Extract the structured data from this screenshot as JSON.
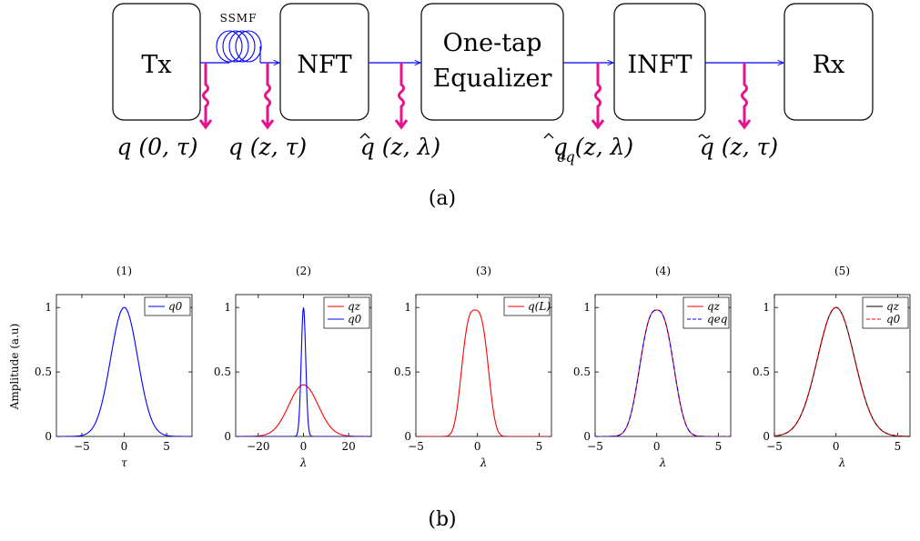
{
  "diagram": {
    "blocks": [
      {
        "id": "tx",
        "label": "Tx"
      },
      {
        "id": "nft",
        "label": "NFT"
      },
      {
        "id": "equalizer",
        "label_line1": "One-tap",
        "label_line2": "Equalizer"
      },
      {
        "id": "infft",
        "label": "INFT"
      },
      {
        "id": "rx",
        "label": "Rx"
      }
    ],
    "fiber_label": "SSMF",
    "signals": [
      {
        "id": "q0",
        "text": "q (0, τ)"
      },
      {
        "id": "qz",
        "text": "q (z, τ)"
      },
      {
        "id": "qhat",
        "text": "q (z, λ)"
      },
      {
        "id": "qeq",
        "text": "q (z, λ)",
        "subscript": "eq"
      },
      {
        "id": "qtilde",
        "text": "q (z, τ)"
      }
    ],
    "caption_a": "(a)",
    "caption_b": "(b)",
    "colors": {
      "arrow": "#0000ff",
      "tap": "#e6138c"
    }
  },
  "chart_data": [
    {
      "type": "line",
      "title": "(1)",
      "xlabel": "τ",
      "ylabel": "Amplitude (a.u)",
      "xlim": [
        -8,
        8
      ],
      "ylim": [
        0,
        1.1
      ],
      "xticks": [
        -5,
        0,
        5
      ],
      "yticks": [
        0,
        0.5,
        1
      ],
      "series": [
        {
          "name": "q0",
          "color": "#0000ff",
          "dash": "solid",
          "shape": "gaussian",
          "amplitude": 1,
          "width": 1.6
        }
      ]
    },
    {
      "type": "line",
      "title": "(2)",
      "xlabel": "λ",
      "ylabel": "",
      "xlim": [
        -30,
        30
      ],
      "ylim": [
        0,
        1.1
      ],
      "xticks": [
        -20,
        0,
        20
      ],
      "yticks": [
        0,
        0.5,
        1
      ],
      "series": [
        {
          "name": "qz",
          "color": "#ff0000",
          "dash": "solid",
          "shape": "gaussian",
          "amplitude": 0.4,
          "width": 6.5
        },
        {
          "name": "q0",
          "color": "#0000ff",
          "dash": "solid",
          "shape": "gaussian",
          "amplitude": 1,
          "width": 1.0
        }
      ]
    },
    {
      "type": "line",
      "title": "(3)",
      "xlabel": "λ",
      "ylabel": "",
      "xlim": [
        -5,
        6
      ],
      "ylim": [
        0,
        1.1
      ],
      "xticks": [
        -5,
        0,
        5
      ],
      "yticks": [
        0,
        0.5,
        1
      ],
      "series": [
        {
          "name": "q(L)",
          "color": "#ff0000",
          "dash": "solid",
          "shape": "flattop",
          "amplitude": 0.98,
          "center": -0.2,
          "width": 0.9,
          "power": 3
        }
      ]
    },
    {
      "type": "line",
      "title": "(4)",
      "xlabel": "λ",
      "ylabel": "",
      "xlim": [
        -5,
        6
      ],
      "ylim": [
        0,
        1.1
      ],
      "xticks": [
        -5,
        0,
        5
      ],
      "yticks": [
        0,
        0.5,
        1
      ],
      "series": [
        {
          "name": "qz",
          "color": "#ff0000",
          "dash": "solid",
          "shape": "flattop",
          "amplitude": 0.98,
          "center": 0,
          "width": 1.2,
          "power": 2.6
        },
        {
          "name": "qeq",
          "color": "#0000ff",
          "dash": "dashed",
          "shape": "flattop",
          "amplitude": 0.98,
          "center": 0,
          "width": 1.2,
          "power": 2.6
        }
      ]
    },
    {
      "type": "line",
      "title": "(5)",
      "xlabel": "λ",
      "ylabel": "",
      "xlim": [
        -5,
        6
      ],
      "ylim": [
        0,
        1.1
      ],
      "xticks": [
        -5,
        0,
        5
      ],
      "yticks": [
        0,
        0.5,
        1
      ],
      "series": [
        {
          "name": "qz",
          "color": "#000000",
          "dash": "solid",
          "shape": "gaussian",
          "amplitude": 1,
          "width": 1.5
        },
        {
          "name": "q0",
          "color": "#ff0000",
          "dash": "dashed",
          "shape": "gaussian",
          "amplitude": 1,
          "width": 1.5
        }
      ]
    }
  ]
}
